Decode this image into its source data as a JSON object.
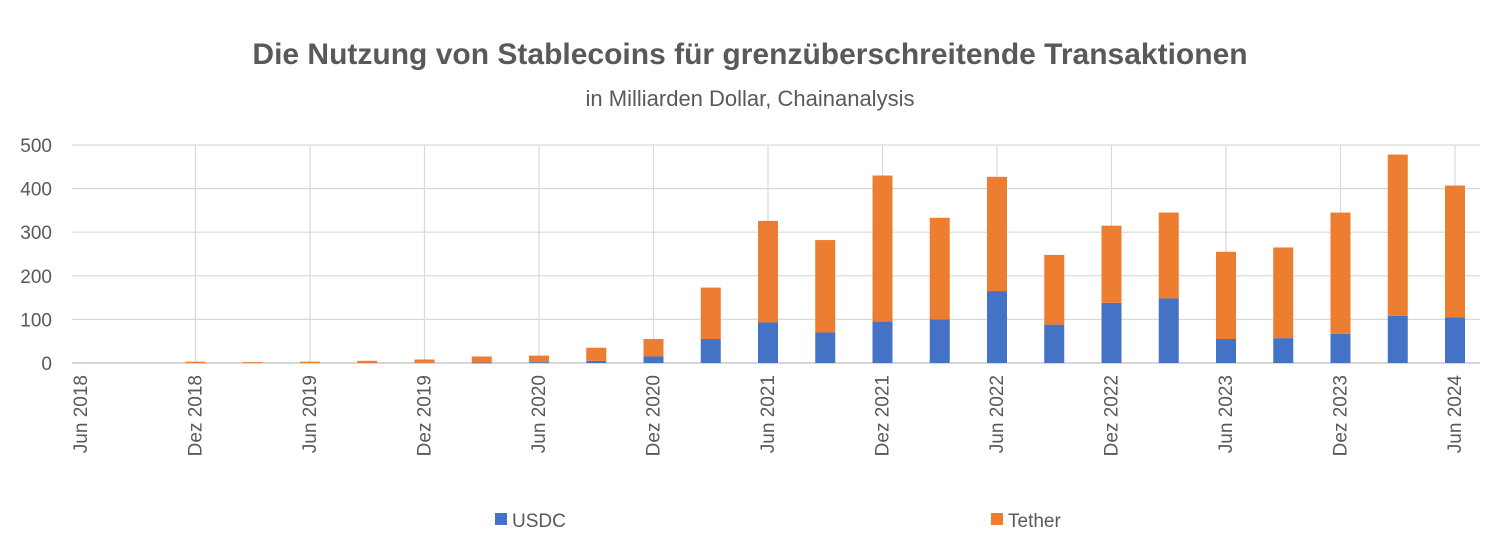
{
  "chart_data": {
    "type": "bar",
    "stacked": true,
    "title": "Die Nutzung von Stablecoins für grenzüberschreitende Transaktionen",
    "subtitle": "in Milliarden Dollar, Chainanalysis",
    "ylim": [
      0,
      500
    ],
    "yticks": [
      0,
      100,
      200,
      300,
      400,
      500
    ],
    "grid": true,
    "legend_position": "bottom",
    "x_tick_labels": [
      "Jun 2018",
      "Dez 2018",
      "Jun 2019",
      "Dez 2019",
      "Jun 2020",
      "Dez 2020",
      "Jun 2021",
      "Dez 2021",
      "Jun 2022",
      "Dez 2022",
      "Jun 2023",
      "Dez 2023",
      "Jun 2024"
    ],
    "categories": [
      "Jun 2018",
      "Sep 2018",
      "Dez 2018",
      "Mar 2019",
      "Jun 2019",
      "Sep 2019",
      "Dez 2019",
      "Mar 2020",
      "Jun 2020",
      "Sep 2020",
      "Dez 2020",
      "Mar 2021",
      "Jun 2021",
      "Sep 2021",
      "Dez 2021",
      "Mar 2022",
      "Jun 2022",
      "Sep 2022",
      "Dez 2022",
      "Mar 2023",
      "Jun 2023",
      "Sep 2023",
      "Dez 2023",
      "Mar 2024",
      "Jun 2024"
    ],
    "series": [
      {
        "name": "USDC",
        "color": "#4472C4",
        "values": [
          0,
          0,
          0,
          0,
          0,
          0,
          0,
          1,
          2,
          5,
          15,
          55,
          93,
          70,
          95,
          100,
          165,
          88,
          138,
          148,
          55,
          57,
          67,
          108,
          105
        ]
      },
      {
        "name": "Tether",
        "color": "#ED7D31",
        "values": [
          0,
          0,
          3,
          2,
          3,
          5,
          8,
          14,
          15,
          30,
          40,
          118,
          233,
          212,
          335,
          233,
          262,
          160,
          177,
          197,
          200,
          208,
          278,
          370,
          302
        ]
      }
    ]
  }
}
